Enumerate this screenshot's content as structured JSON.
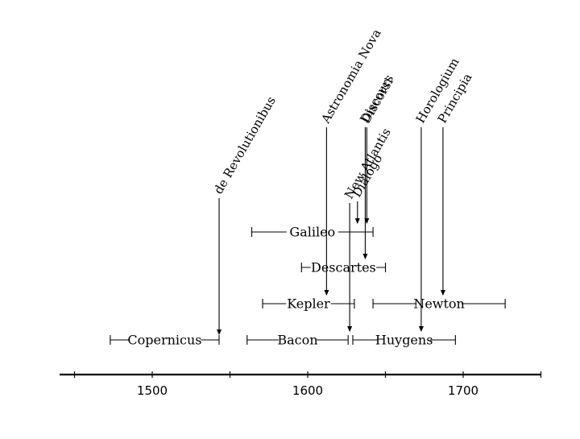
{
  "axis": {
    "ticks": [
      {
        "year": 1500,
        "label": "1500"
      },
      {
        "year": 1600,
        "label": "1600"
      },
      {
        "year": 1700,
        "label": "1700"
      }
    ],
    "minor_ticks": [
      1450,
      1550,
      1650,
      1750
    ]
  },
  "lifespans": [
    {
      "name": "Copernicus",
      "start": 1473,
      "end": 1543,
      "level": 0
    },
    {
      "name": "Bacon",
      "start": 1561,
      "end": 1626,
      "level": 0
    },
    {
      "name": "Huygens",
      "start": 1629,
      "end": 1695,
      "level": 0
    },
    {
      "name": "Kepler",
      "start": 1571,
      "end": 1630,
      "level": 1
    },
    {
      "name": "Newton",
      "start": 1642,
      "end": 1727,
      "level": 1
    },
    {
      "name": "Descartes",
      "start": 1596,
      "end": 1650,
      "level": 2
    },
    {
      "name": "Galileo",
      "start": 1564,
      "end": 1642,
      "level": 3
    }
  ],
  "works": [
    {
      "title": "de Revolutionibus",
      "year": 1543,
      "author": "Copernicus"
    },
    {
      "title": "Astronomia Nova",
      "year": 1609,
      "author": "Kepler"
    },
    {
      "title": "New Atlantis",
      "year": 1627,
      "author": "Bacon"
    },
    {
      "title": "Discours",
      "year": 1637,
      "author": "Descartes"
    },
    {
      "title": "Dialogo",
      "year": 1632,
      "author": "Galileo"
    },
    {
      "title": "Discorsi",
      "year": 1638,
      "author": "Galileo"
    },
    {
      "title": "Horologium",
      "year": 1673,
      "author": "Huygens"
    },
    {
      "title": "Principia",
      "year": 1687,
      "author": "Newton"
    }
  ]
}
